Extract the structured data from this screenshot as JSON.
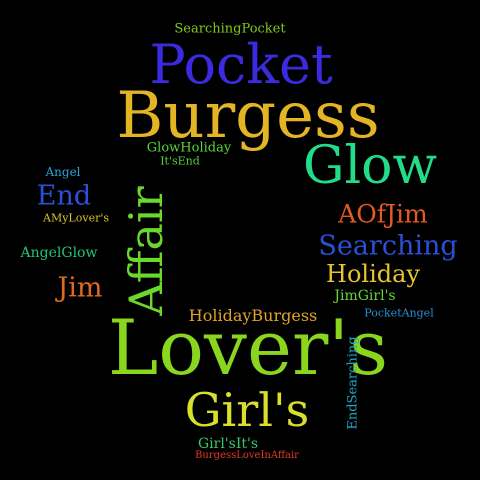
{
  "cloud": {
    "background": "#000000",
    "words": {
      "searching_pocket": {
        "text": "SearchingPocket",
        "color": "#7ccc1e"
      },
      "pocket": {
        "text": "Pocket",
        "color": "#3b2be0"
      },
      "burgess": {
        "text": "Burgess",
        "color": "#e3b424"
      },
      "glow": {
        "text": "Glow",
        "color": "#22dc8a"
      },
      "glow_holiday": {
        "text": "GlowHoliday",
        "color": "#56d63a"
      },
      "its_end": {
        "text": "It'sEnd",
        "color": "#55d33a"
      },
      "angel": {
        "text": "Angel",
        "color": "#2aa0d6"
      },
      "end": {
        "text": "End",
        "color": "#2a52d8"
      },
      "a_my_lovers": {
        "text": "AMyLover's",
        "color": "#d9c42a"
      },
      "affair": {
        "text": "Affair",
        "color": "#6ad82c"
      },
      "a_of_jim": {
        "text": "AOfJim",
        "color": "#e45a22"
      },
      "searching": {
        "text": "Searching",
        "color": "#2c4fd8"
      },
      "angel_glow": {
        "text": "AngelGlow",
        "color": "#22c476"
      },
      "holiday": {
        "text": "Holiday",
        "color": "#e8c52c"
      },
      "jim": {
        "text": "Jim",
        "color": "#e06a22"
      },
      "jim_girls": {
        "text": "JimGirl's",
        "color": "#62d63a"
      },
      "pocket_angel": {
        "text": "PocketAngel",
        "color": "#2a8ed4"
      },
      "holiday_burgess": {
        "text": "HolidayBurgess",
        "color": "#e0a428"
      },
      "lovers": {
        "text": "Lover's",
        "color": "#8ad61e"
      },
      "end_searching": {
        "text": "EndSearching",
        "color": "#22a4c4"
      },
      "girls": {
        "text": "Girl's",
        "color": "#d8e02a"
      },
      "girls_it": {
        "text": "Girl'sIt's",
        "color": "#38c86a"
      },
      "burgess_love_in_affair": {
        "text": "BurgessLoveInAffair",
        "color": "#e03a24"
      }
    }
  }
}
